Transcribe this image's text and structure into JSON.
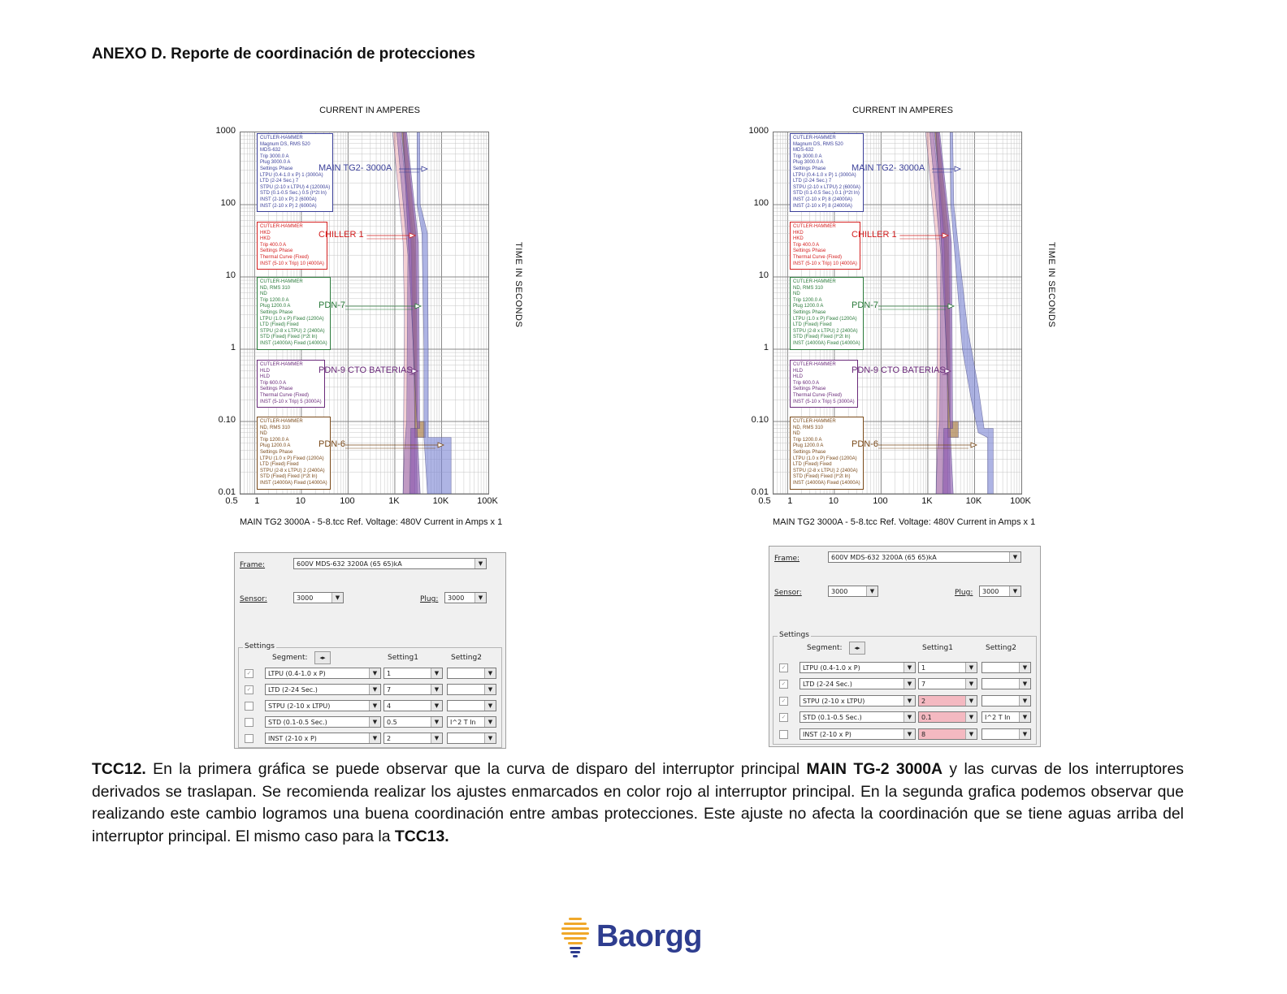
{
  "heading": "ANEXO D. Reporte de coordinación de protecciones",
  "figures": [
    {
      "x_title": "CURRENT IN AMPERES",
      "y_title": "TIME IN SECONDS",
      "y_ticks": [
        "1000",
        "100",
        "10",
        "1",
        "0.10",
        "0.01"
      ],
      "x_ticks": [
        "0.5",
        "1",
        "10",
        "100",
        "1K",
        "10K",
        "100K"
      ],
      "footer": "MAIN TG2 3000A - 5-8.tcc   Ref. Voltage: 480V   Current in Amps x 1",
      "legends": [
        {
          "color": "#3a3f99",
          "lines": [
            "CUTLER-HAMMER",
            "Magnum DS, RMS 520",
            "MDS-632",
            "Trip 3000.0 A",
            "Plug 3000.0 A",
            "Settings Phase",
            "   LTPU (0.4-1.0 x P) 1 (3000A)",
            "   LTD (2-24 Sec.) 7",
            "   STPU (2-10 x LTPU) 4 (12000A)",
            "   STD (0.1-0.5 Sec.) 0.5 (I^2t In)",
            "   INST (2-10 x P) 2 (6000A)",
            "   INST (2-10 x P) 2 (6000A)"
          ]
        },
        {
          "color": "#d42020",
          "lines": [
            "CUTLER-HAMMER",
            "HKD",
            "HKD",
            "Trip 400.0 A",
            "Settings Phase",
            "   Thermal Curve (Fixed)",
            "   INST (5-10 x Trip) 10 (4000A)"
          ]
        },
        {
          "color": "#2a7a3a",
          "lines": [
            "CUTLER-HAMMER",
            "ND, RMS 310",
            "ND",
            "Trip 1200.0 A",
            "Plug 1200.0 A",
            "Settings Phase",
            "   LTPU (1.0 x P) Fixed (1200A)",
            "   LTD (Fixed) Fixed",
            "   STPU (2-8 x LTPU) 2 (2400A)",
            "   STD (Fixed) Fixed (I^2t In)",
            "   INST (14000A) Fixed (14000A)"
          ]
        },
        {
          "color": "#6a2a7a",
          "lines": [
            "CUTLER-HAMMER",
            "HLD",
            "HLD",
            "Trip 600.0 A",
            "Settings Phase",
            "   Thermal Curve (Fixed)",
            "   INST (5-10 x Trip) 5 (3000A)"
          ]
        },
        {
          "color": "#7a4a1a",
          "lines": [
            "CUTLER-HAMMER",
            "ND, RMS 310",
            "ND",
            "Trip 1200.0 A",
            "Plug 1200.0 A",
            "Settings Phase",
            "   LTPU (1.0 x P) Fixed (1200A)",
            "   LTD (Fixed) Fixed",
            "   STPU (2-8 x LTPU) 2 (2400A)",
            "   STD (Fixed) Fixed (I^2t In)",
            "   INST (14000A) Fixed (14000A)"
          ]
        }
      ],
      "labels": [
        {
          "text": "MAIN TG2- 3000A",
          "color": "#3a3f99"
        },
        {
          "text": "CHILLER 1",
          "color": "#d42020"
        },
        {
          "text": "PDN-7",
          "color": "#2a7a3a"
        },
        {
          "text": "PDN-9 CTO BATERIAS",
          "color": "#6a2a7a"
        },
        {
          "text": "PDN-6",
          "color": "#7a4a1a"
        }
      ]
    },
    {
      "x_title": "CURRENT IN AMPERES",
      "y_title": "TIME IN SECONDS",
      "y_ticks": [
        "1000",
        "100",
        "10",
        "1",
        "0.10",
        "0.01"
      ],
      "x_ticks": [
        "0.5",
        "1",
        "10",
        "100",
        "1K",
        "10K",
        "100K"
      ],
      "footer": "MAIN TG2 3000A - 5-8.tcc   Ref. Voltage: 480V   Current in Amps x 1",
      "legends": [
        {
          "color": "#3a3f99",
          "lines": [
            "CUTLER-HAMMER",
            "Magnum DS, RMS 520",
            "MDS-632",
            "Trip 3000.0 A",
            "Plug 3000.0 A",
            "Settings Phase",
            "   LTPU (0.4-1.0 x P) 1 (3000A)",
            "   LTD (2-24 Sec.) 7",
            "   STPU (2-10 x LTPU) 2 (6000A)",
            "   STD (0.1-0.5 Sec.) 0.1 (I^2t In)",
            "   INST (2-10 x P) 8 (24000A)",
            "   INST (2-10 x P) 8 (24000A)"
          ]
        },
        {
          "color": "#d42020",
          "lines": [
            "CUTLER-HAMMER",
            "HKD",
            "HKD",
            "Trip 400.0 A",
            "Settings Phase",
            "   Thermal Curve (Fixed)",
            "   INST (5-10 x Trip) 10 (4000A)"
          ]
        },
        {
          "color": "#2a7a3a",
          "lines": [
            "CUTLER-HAMMER",
            "ND, RMS 310",
            "ND",
            "Trip 1200.0 A",
            "Plug 1200.0 A",
            "Settings Phase",
            "   LTPU (1.0 x P) Fixed (1200A)",
            "   LTD (Fixed) Fixed",
            "   STPU (2-8 x LTPU) 2 (2400A)",
            "   STD (Fixed) Fixed (I^2t In)",
            "   INST (14000A) Fixed (14000A)"
          ]
        },
        {
          "color": "#6a2a7a",
          "lines": [
            "CUTLER-HAMMER",
            "HLD",
            "HLD",
            "Trip 600.0 A",
            "Settings Phase",
            "   Thermal Curve (Fixed)",
            "   INST (5-10 x Trip) 5 (3000A)"
          ]
        },
        {
          "color": "#7a4a1a",
          "lines": [
            "CUTLER-HAMMER",
            "ND, RMS 310",
            "ND",
            "Trip 1200.0 A",
            "Plug 1200.0 A",
            "Settings Phase",
            "   LTPU (1.0 x P) Fixed (1200A)",
            "   LTD (Fixed) Fixed",
            "   STPU (2-8 x LTPU) 2 (2400A)",
            "   STD (Fixed) Fixed (I^2t In)",
            "   INST (14000A) Fixed (14000A)"
          ]
        }
      ],
      "labels": [
        {
          "text": "MAIN TG2- 3000A",
          "color": "#3a3f99"
        },
        {
          "text": "CHILLER 1",
          "color": "#d42020"
        },
        {
          "text": "PDN-7",
          "color": "#2a7a3a"
        },
        {
          "text": "PDN-9 CTO BATERIAS",
          "color": "#6a2a7a"
        },
        {
          "text": "PDN-6",
          "color": "#7a4a1a"
        }
      ]
    }
  ],
  "dialogs": [
    {
      "frame_label": "Frame:",
      "frame_value": "600V MDS-632  3200A (65 65)kA",
      "sensor_label": "Sensor:",
      "sensor_value": "3000",
      "plug_label": "Plug:",
      "plug_value": "3000",
      "settings_title": "Settings",
      "segment_label": "Segment:",
      "setting1_label": "Setting1",
      "setting2_label": "Setting2",
      "rows": [
        {
          "seg": "LTPU (0.4-1.0 x P)",
          "s1": "1",
          "s2": "",
          "checked": "✓",
          "hl": false
        },
        {
          "seg": "LTD (2-24 Sec.)",
          "s1": "7",
          "s2": "",
          "checked": "✓",
          "hl": false
        },
        {
          "seg": "STPU (2-10 x LTPU)",
          "s1": "4",
          "s2": "",
          "checked": "",
          "hl": false
        },
        {
          "seg": "STD (0.1-0.5 Sec.)",
          "s1": "0.5",
          "s2": "I^2 T In",
          "checked": "",
          "hl": false
        },
        {
          "seg": "INST (2-10 x P)",
          "s1": "2",
          "s2": "",
          "checked": "",
          "hl": false
        }
      ]
    },
    {
      "frame_label": "Frame:",
      "frame_value": "600V MDS-632  3200A (65 65)kA",
      "sensor_label": "Sensor:",
      "sensor_value": "3000",
      "plug_label": "Plug:",
      "plug_value": "3000",
      "settings_title": "Settings",
      "segment_label": "Segment:",
      "setting1_label": "Setting1",
      "setting2_label": "Setting2",
      "rows": [
        {
          "seg": "LTPU (0.4-1.0 x P)",
          "s1": "1",
          "s2": "",
          "checked": "✓",
          "hl": false
        },
        {
          "seg": "LTD (2-24 Sec.)",
          "s1": "7",
          "s2": "",
          "checked": "✓",
          "hl": false
        },
        {
          "seg": "STPU (2-10 x LTPU)",
          "s1": "2",
          "s2": "",
          "checked": "✓",
          "hl": true
        },
        {
          "seg": "STD (0.1-0.5 Sec.)",
          "s1": "0.1",
          "s2": "I^2 T In",
          "checked": "✓",
          "hl": true
        },
        {
          "seg": "INST (2-10 x P)",
          "s1": "8",
          "s2": "",
          "checked": "",
          "hl": true
        }
      ]
    }
  ],
  "paragraph": {
    "t1": "TCC12.",
    "t2": " En la primera gráfica se puede observar que la curva de disparo del interruptor principal ",
    "t3": "MAIN TG-2 3000A",
    "t4": " y las curvas de los interruptores derivados se traslapan. Se recomienda realizar los ajustes enmarcados en color rojo al interruptor principal. En la segunda grafica podemos observar que realizando este cambio logramos una buena coordinación entre ambas protecciones. Este ajuste no afecta la coordinación que se tiene aguas arriba del interruptor principal. El mismo caso para la ",
    "t5": "TCC13."
  },
  "logo_text": "Baorgg"
}
